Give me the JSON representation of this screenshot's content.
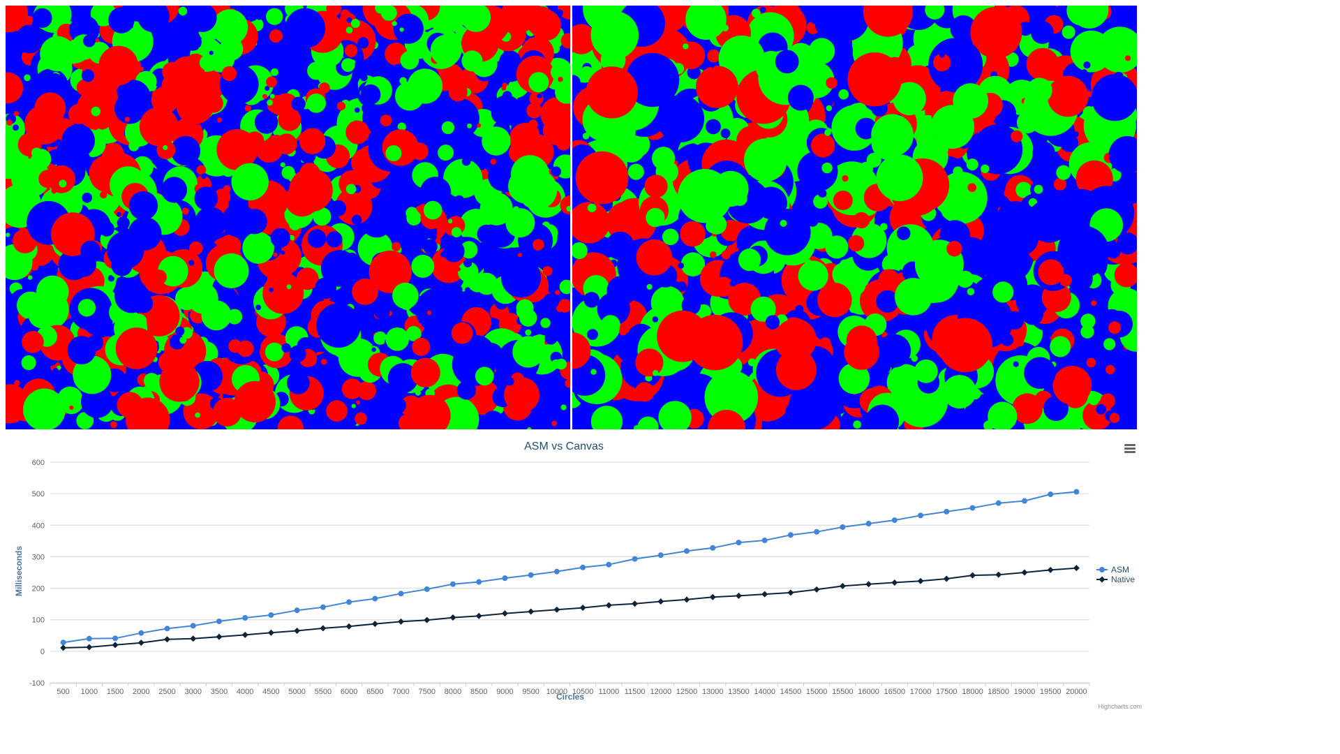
{
  "canvases": {
    "colors": [
      "#ff0000",
      "#00ff00",
      "#0000ff"
    ],
    "left": {
      "name": "asm-canvas"
    },
    "right": {
      "name": "native-canvas"
    }
  },
  "chart": {
    "menu_icon": "hamburger-menu-icon",
    "credits": "Highcharts.com"
  },
  "chart_data": {
    "type": "line",
    "title": "ASM vs Canvas",
    "xlabel": "Circles",
    "ylabel": "Milliseconds",
    "ylim": [
      -100,
      600
    ],
    "yticks": [
      -100,
      0,
      100,
      200,
      300,
      400,
      500,
      600
    ],
    "grid": true,
    "legend": "right",
    "categories": [
      "500",
      "1000",
      "1500",
      "2000",
      "2500",
      "3000",
      "3500",
      "4000",
      "4500",
      "5000",
      "5500",
      "6000",
      "6500",
      "7000",
      "7500",
      "8000",
      "8500",
      "9000",
      "9500",
      "10000",
      "10500",
      "11000",
      "11500",
      "12000",
      "12500",
      "13000",
      "13500",
      "14000",
      "14500",
      "15000",
      "15500",
      "16000",
      "16500",
      "17000",
      "17500",
      "18000",
      "18500",
      "19000",
      "19500",
      "20000"
    ],
    "series": [
      {
        "name": "ASM",
        "color": "#4185d6",
        "marker": "circle",
        "values": [
          28,
          40,
          41,
          58,
          72,
          81,
          95,
          106,
          115,
          130,
          140,
          156,
          167,
          183,
          197,
          213,
          220,
          232,
          242,
          253,
          266,
          275,
          293,
          305,
          318,
          328,
          345,
          352,
          369,
          379,
          394,
          405,
          416,
          431,
          443,
          455,
          470,
          477,
          498,
          506
        ]
      },
      {
        "name": "Native",
        "color": "#0d233a",
        "marker": "diamond",
        "values": [
          11,
          13,
          20,
          27,
          38,
          40,
          46,
          52,
          59,
          65,
          73,
          79,
          87,
          94,
          99,
          107,
          112,
          120,
          126,
          132,
          138,
          146,
          151,
          158,
          164,
          172,
          176,
          181,
          186,
          196,
          207,
          213,
          218,
          223,
          230,
          241,
          243,
          250,
          258,
          264
        ]
      }
    ]
  }
}
